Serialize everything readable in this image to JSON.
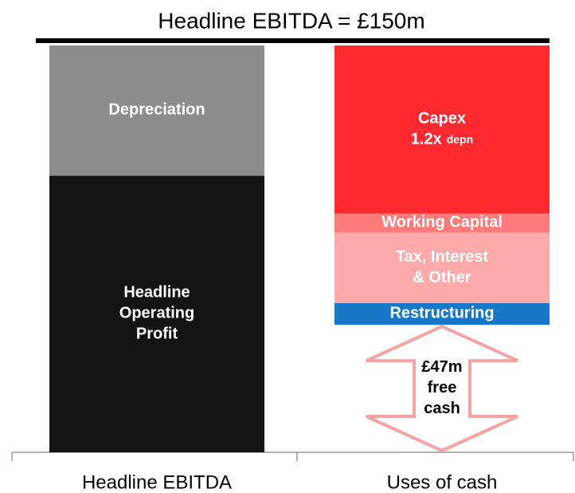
{
  "chart_data": {
    "type": "stacked_bar",
    "title": "Headline EBITDA = £150m",
    "categories": [
      "Headline EBITDA",
      "Uses of cash"
    ],
    "bars": [
      {
        "segments": [
          {
            "label": [
              "Headline",
              "Operating",
              "Profit"
            ],
            "value": 102,
            "color": "#141414",
            "style": "fill"
          },
          {
            "label": [
              "Depreciation"
            ],
            "value": 48,
            "color": "#8c8c8c",
            "style": "fill"
          }
        ]
      },
      {
        "segments": [
          {
            "label": [
              "£47m",
              "free",
              "cash"
            ],
            "value": 47,
            "color": "#f4a3a3",
            "style": "arrow"
          },
          {
            "label": [
              "Restructuring"
            ],
            "value": 8,
            "color": "#1878c8",
            "style": "fill"
          },
          {
            "label": [
              "Tax, Interest",
              "& Other"
            ],
            "value": 26,
            "color": "#ffaaaa",
            "style": "fill"
          },
          {
            "label": [
              "Working Capital"
            ],
            "value": 7,
            "color": "#ff7b7b",
            "style": "fill"
          },
          {
            "label": [
              "Capex",
              "1.2x"
            ],
            "note": "depn",
            "value": 62,
            "color": "#ff2a2f",
            "style": "fill"
          }
        ]
      }
    ]
  }
}
